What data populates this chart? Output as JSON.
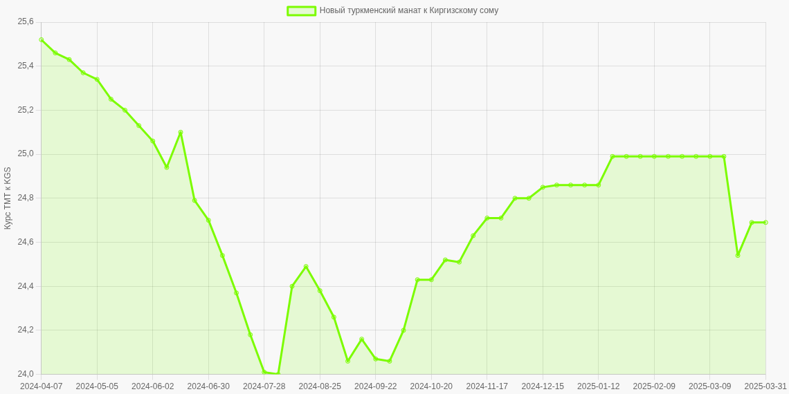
{
  "chart_data": {
    "type": "area",
    "categories": [
      "2024-04-07",
      null,
      null,
      null,
      "2024-05-05",
      null,
      null,
      null,
      "2024-06-02",
      null,
      null,
      null,
      "2024-06-30",
      null,
      null,
      null,
      "2024-07-28",
      null,
      null,
      null,
      "2024-08-25",
      null,
      null,
      null,
      "2024-09-22",
      null,
      null,
      null,
      "2024-10-20",
      null,
      null,
      null,
      "2024-11-17",
      null,
      null,
      null,
      "2024-12-15",
      null,
      null,
      null,
      "2025-01-12",
      null,
      null,
      null,
      "2025-02-09",
      null,
      null,
      null,
      "2025-03-09",
      null,
      null,
      null,
      "2025-03-31"
    ],
    "series": [
      {
        "name": "Новый туркменский манат к Киргизскому сому",
        "color": "#7cfc00",
        "values": [
          25.52,
          25.46,
          25.43,
          25.37,
          25.34,
          25.25,
          25.2,
          25.13,
          25.06,
          24.94,
          25.1,
          24.79,
          24.7,
          24.54,
          24.37,
          24.18,
          24.01,
          24.0,
          24.4,
          24.49,
          24.38,
          24.26,
          24.06,
          24.16,
          24.07,
          24.06,
          24.2,
          24.43,
          24.43,
          24.52,
          24.51,
          24.63,
          24.71,
          24.71,
          24.8,
          24.8,
          24.85,
          24.86,
          24.86,
          24.86,
          24.86,
          24.99,
          24.99,
          24.99,
          24.99,
          24.99,
          24.99,
          24.99,
          24.99,
          24.99,
          24.54,
          24.69,
          24.69
        ]
      }
    ],
    "ylabel": "Курс ТМТ к KGS",
    "ylim": [
      24.0,
      25.6
    ],
    "yticks": [
      {
        "value": 24.0,
        "label": "24,0"
      },
      {
        "value": 24.2,
        "label": "24,2"
      },
      {
        "value": 24.4,
        "label": "24,4"
      },
      {
        "value": 24.6,
        "label": "24,6"
      },
      {
        "value": 24.8,
        "label": "24,8"
      },
      {
        "value": 25.0,
        "label": "25,0"
      },
      {
        "value": 25.2,
        "label": "25,2"
      },
      {
        "value": 25.4,
        "label": "25,4"
      },
      {
        "value": 25.6,
        "label": "25,6"
      }
    ],
    "grid": true,
    "legend": "top",
    "marker": "circle"
  }
}
